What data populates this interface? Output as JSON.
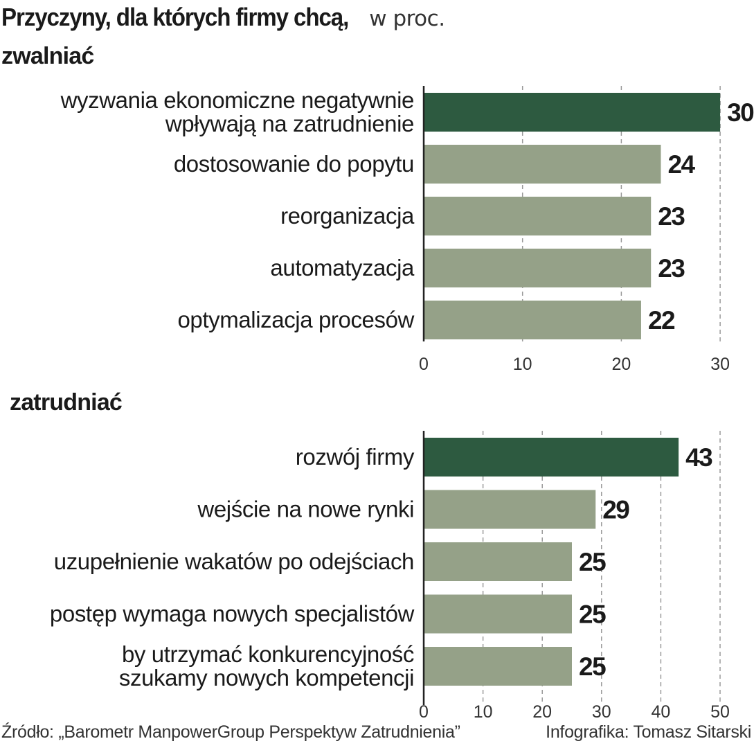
{
  "title": {
    "main": "Przyczyny, dla których firmy chcą,",
    "unit": "w proc."
  },
  "colors": {
    "highlight": "#2d5a40",
    "bar": "#95a188",
    "grid": "#9a9a9a",
    "axis": "#222222"
  },
  "chart_data": [
    {
      "type": "bar",
      "orientation": "horizontal",
      "title": "zwalniać",
      "categories": [
        "wyzwania ekonomiczne negatywnie wpływają na zatrudnienie",
        "dostosowanie do popytu",
        "reorganizacja",
        "automatyzacja",
        "optymalizacja procesów"
      ],
      "category_lines": [
        [
          "wyzwania ekonomiczne negatywnie",
          "wpływają na zatrudnienie"
        ],
        [
          "dostosowanie do popytu"
        ],
        [
          "reorganizacja"
        ],
        [
          "automatyzacja"
        ],
        [
          "optymalizacja procesów"
        ]
      ],
      "values": [
        30,
        24,
        23,
        23,
        22
      ],
      "highlight_index": 0,
      "xlim": [
        0,
        30
      ],
      "ticks": [
        0,
        10,
        20,
        30
      ],
      "grid": true
    },
    {
      "type": "bar",
      "orientation": "horizontal",
      "title": "zatrudniać",
      "categories": [
        "rozwój firmy",
        "wejście na nowe rynki",
        "uzupełnienie wakatów po odejściach",
        "postęp wymaga nowych specjalistów",
        "by utrzymać konkurencyjność szukamy nowych kompetencji"
      ],
      "category_lines": [
        [
          "rozwój firmy"
        ],
        [
          "wejście na nowe rynki"
        ],
        [
          "uzupełnienie wakatów po odejściach"
        ],
        [
          "postęp wymaga nowych specjalistów"
        ],
        [
          "by utrzymać konkurencyjność",
          "szukamy nowych kompetencji"
        ]
      ],
      "values": [
        43,
        29,
        25,
        25,
        25
      ],
      "highlight_index": 0,
      "xlim": [
        0,
        50
      ],
      "ticks": [
        0,
        10,
        20,
        30,
        40,
        50
      ],
      "grid": true
    }
  ],
  "footer": {
    "source": "Źródło: „Barometr ManpowerGroup Perspektyw Zatrudnienia”",
    "credit": "Infografika: Tomasz Sitarski"
  }
}
